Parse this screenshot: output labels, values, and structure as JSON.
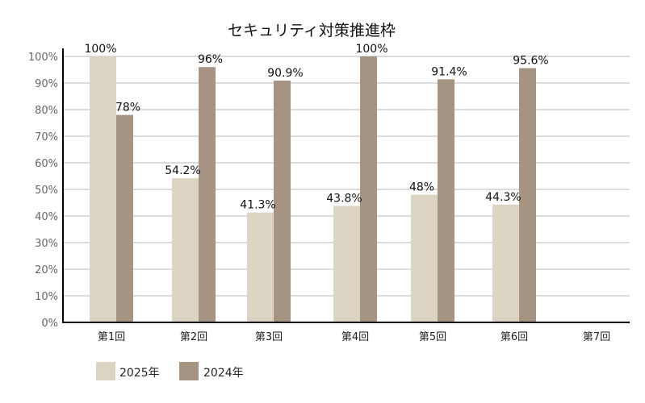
{
  "chart_data": {
    "type": "bar",
    "title": "セキュリティ対策推進枠",
    "xlabel": "",
    "ylabel": "",
    "categories": [
      "第1回",
      "第2回",
      "第3回",
      "第4回",
      "第5回",
      "第6回",
      "第7回"
    ],
    "series": [
      {
        "name": "2025年",
        "color": "#dbd4c3",
        "values": [
          100,
          54.2,
          41.3,
          43.8,
          48,
          44.3,
          null
        ],
        "labels": [
          "100%",
          "54.2%",
          "41.3%",
          "43.8%",
          "48%",
          "44.3%",
          ""
        ]
      },
      {
        "name": "2024年",
        "color": "#a69483",
        "values": [
          78,
          96,
          90.9,
          100,
          91.4,
          95.6,
          null
        ],
        "labels": [
          "78%",
          "96%",
          "90.9%",
          "100%",
          "91.4%",
          "95.6%",
          ""
        ]
      }
    ],
    "yticks": [
      "0%",
      "10%",
      "20%",
      "30%",
      "40%",
      "50%",
      "60%",
      "70%",
      "80%",
      "90%",
      "100%"
    ],
    "ylim": [
      0,
      100
    ],
    "grid": true,
    "legend_position": "bottom-left"
  }
}
